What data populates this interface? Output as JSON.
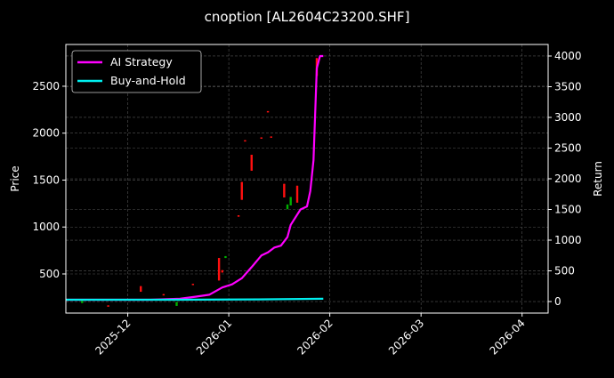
{
  "chart_data": {
    "type": "line",
    "title": "cnoption [AL2604C23200.SHF]",
    "ylabel": "Price",
    "ylabel_right": "Return",
    "xlim": [
      "2025-11-12",
      "2026-04-09"
    ],
    "ylim": [
      83,
      2945
    ],
    "ylim_right": [
      -188,
      4188
    ],
    "x_ticks": [
      "2025-12-01",
      "2026-01-01",
      "2026-02-01",
      "2026-03-01",
      "2026-04-01"
    ],
    "x_tick_labels": [
      "2025-12",
      "2026-01",
      "2026-02",
      "2026-03",
      "2026-04"
    ],
    "y_ticks": [
      500,
      1000,
      1500,
      2000,
      2500
    ],
    "y_ticks_right": [
      0,
      500,
      1000,
      1500,
      2000,
      2500,
      3000,
      3500,
      4000
    ],
    "grid": true,
    "legend_position": "top-left",
    "colors": {
      "background": "#000000",
      "up": "#00b000",
      "down": "#ff1010"
    },
    "candles": [
      {
        "date": "2025-11-17",
        "open": 190,
        "high": 215,
        "low": 190,
        "close": 215
      },
      {
        "date": "2025-11-25",
        "open": 165,
        "high": 165,
        "low": 155,
        "close": 155
      },
      {
        "date": "2025-12-05",
        "open": 370,
        "high": 370,
        "low": 310,
        "close": 310
      },
      {
        "date": "2025-12-12",
        "open": 285,
        "high": 285,
        "low": 275,
        "close": 275
      },
      {
        "date": "2025-12-16",
        "open": 160,
        "high": 200,
        "low": 160,
        "close": 200
      },
      {
        "date": "2025-12-21",
        "open": 395,
        "high": 395,
        "low": 385,
        "close": 385
      },
      {
        "date": "2025-12-29",
        "open": 670,
        "high": 670,
        "low": 430,
        "close": 430
      },
      {
        "date": "2025-12-30",
        "open": 540,
        "high": 540,
        "low": 515,
        "close": 515
      },
      {
        "date": "2025-12-31",
        "open": 670,
        "high": 690,
        "low": 670,
        "close": 690
      },
      {
        "date": "2026-01-04",
        "open": 1125,
        "high": 1125,
        "low": 1110,
        "close": 1110
      },
      {
        "date": "2026-01-05",
        "open": 1480,
        "high": 1480,
        "low": 1290,
        "close": 1290
      },
      {
        "date": "2026-01-06",
        "open": 1925,
        "high": 1925,
        "low": 1915,
        "close": 1915
      },
      {
        "date": "2026-01-08",
        "open": 1770,
        "high": 1770,
        "low": 1600,
        "close": 1600
      },
      {
        "date": "2026-01-11",
        "open": 1955,
        "high": 1955,
        "low": 1945,
        "close": 1945
      },
      {
        "date": "2026-01-13",
        "open": 2235,
        "high": 2235,
        "low": 2225,
        "close": 2225
      },
      {
        "date": "2026-01-14",
        "open": 1965,
        "high": 1965,
        "low": 1955,
        "close": 1955
      },
      {
        "date": "2026-01-18",
        "open": 1460,
        "high": 1460,
        "low": 1315,
        "close": 1315
      },
      {
        "date": "2026-01-19",
        "open": 1190,
        "high": 1240,
        "low": 1190,
        "close": 1240
      },
      {
        "date": "2026-01-20",
        "open": 1230,
        "high": 1320,
        "low": 1230,
        "close": 1320
      },
      {
        "date": "2026-01-22",
        "open": 1440,
        "high": 1440,
        "low": 1260,
        "close": 1260
      },
      {
        "date": "2026-01-28",
        "open": 2800,
        "high": 2800,
        "low": 2610,
        "close": 2610
      }
    ],
    "series": [
      {
        "name": "AI Strategy",
        "axis": "right",
        "color": "#ff00ff",
        "x": [
          "2025-11-12",
          "2025-12-08",
          "2025-12-17",
          "2025-12-22",
          "2025-12-26",
          "2025-12-30",
          "2026-01-02",
          "2026-01-05",
          "2026-01-08",
          "2026-01-11",
          "2026-01-13",
          "2026-01-15",
          "2026-01-17",
          "2026-01-19",
          "2026-01-20",
          "2026-01-23",
          "2026-01-25",
          "2026-01-26",
          "2026-01-27",
          "2026-01-28",
          "2026-01-29",
          "2026-01-30"
        ],
        "values": [
          30,
          30,
          45,
          80,
          110,
          230,
          280,
          380,
          560,
          750,
          800,
          880,
          910,
          1050,
          1250,
          1500,
          1550,
          1800,
          2300,
          3800,
          4000,
          4000
        ]
      },
      {
        "name": "Buy-and-Hold",
        "axis": "right",
        "color": "#00f0f0",
        "x": [
          "2025-11-12",
          "2025-12-15",
          "2026-01-10",
          "2026-01-30"
        ],
        "values": [
          30,
          30,
          35,
          45
        ]
      }
    ]
  }
}
